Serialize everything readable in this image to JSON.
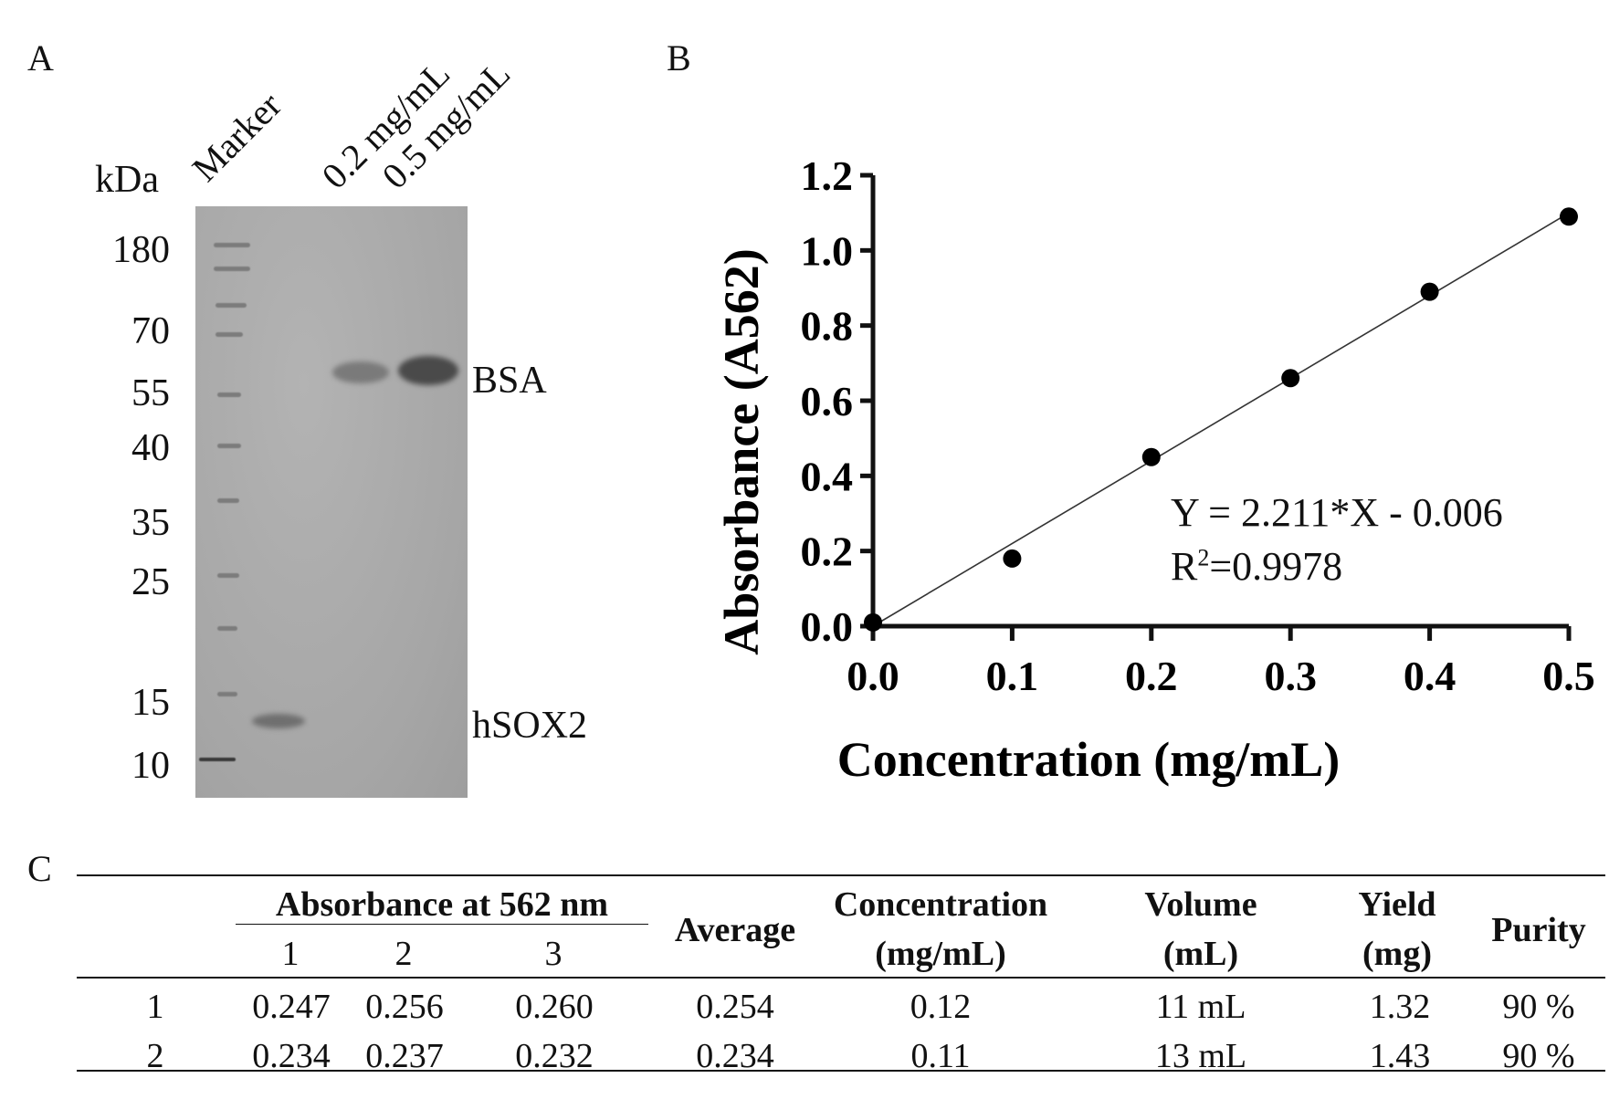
{
  "panel_a": {
    "letter": "A",
    "unit_label": "kDa",
    "lane_labels": [
      "Marker",
      "0.2 mg/mL",
      "0.5 mg/mL"
    ],
    "marker_sizes": [
      "180",
      "70",
      "55",
      "40",
      "35",
      "25",
      "15",
      "10"
    ],
    "band_labels": [
      "BSA",
      "hSOX2"
    ]
  },
  "panel_b": {
    "letter": "B",
    "equation": "Y = 2.211*X - 0.006",
    "r2_prefix": "R",
    "r2_sup": "2",
    "r2_value": "=0.9978"
  },
  "chart_data": {
    "type": "scatter",
    "title": "",
    "xlabel": "Concentration (mg/mL)",
    "ylabel": "Absorbance (A562)",
    "xlim": [
      0.0,
      0.5
    ],
    "ylim": [
      0.0,
      1.2
    ],
    "xticks": [
      "0.0",
      "0.1",
      "0.2",
      "0.3",
      "0.4",
      "0.5"
    ],
    "yticks": [
      "0.0",
      "0.2",
      "0.4",
      "0.6",
      "0.8",
      "1.0",
      "1.2"
    ],
    "grid": false,
    "series": [
      {
        "x": [
          0.0,
          0.1,
          0.2,
          0.3,
          0.4,
          0.5
        ],
        "y": [
          0.01,
          0.18,
          0.45,
          0.66,
          0.89,
          1.09
        ]
      }
    ],
    "fit_line": {
      "slope": 2.211,
      "intercept": -0.006,
      "x_range": [
        0.0,
        0.5
      ]
    }
  },
  "panel_c": {
    "letter": "C",
    "headers": {
      "absorbance_group": "Absorbance at 562 nm",
      "sub": [
        "1",
        "2",
        "3"
      ],
      "average": "Average",
      "concentration": [
        "Concentration",
        "(mg/mL)"
      ],
      "volume": [
        "Volume",
        "(mL)"
      ],
      "yield": [
        "Yield",
        "(mg)"
      ],
      "purity": "Purity"
    },
    "rows": [
      {
        "id": "1",
        "a1": "0.247",
        "a2": "0.256",
        "a3": "0.260",
        "avg": "0.254",
        "conc": "0.12",
        "vol": "11 mL",
        "yield": "1.32",
        "purity": "90 %"
      },
      {
        "id": "2",
        "a1": "0.234",
        "a2": "0.237",
        "a3": "0.232",
        "avg": "0.234",
        "conc": "0.11",
        "vol": "13 mL",
        "yield": "1.43",
        "purity": "90 %"
      }
    ]
  }
}
